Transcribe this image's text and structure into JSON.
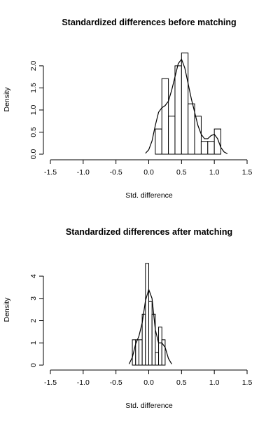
{
  "chart_data": [
    {
      "type": "histogram",
      "title": "Standardized differences before matching",
      "xlabel": "Std. difference",
      "ylabel": "Density",
      "xlim": [
        -1.5,
        1.5
      ],
      "ylim": [
        0,
        2.3
      ],
      "x_ticks": [
        -1.5,
        -1.0,
        -0.5,
        0.0,
        0.5,
        1.0,
        1.5
      ],
      "x_tick_labels": [
        "-1.5",
        "-1.0",
        "-0.5",
        "0.0",
        "0.5",
        "1.0",
        "1.5"
      ],
      "y_ticks": [
        0,
        0.5,
        1.0,
        1.5,
        2.0
      ],
      "y_tick_labels": [
        "0.0",
        "0.5",
        "1.0",
        "1.5",
        "2.0"
      ],
      "bin_width": 0.1,
      "bins": [
        {
          "start": 0.1,
          "end": 0.2,
          "density": 0.57
        },
        {
          "start": 0.2,
          "end": 0.3,
          "density": 1.71
        },
        {
          "start": 0.3,
          "end": 0.4,
          "density": 0.86
        },
        {
          "start": 0.4,
          "end": 0.5,
          "density": 2.0
        },
        {
          "start": 0.5,
          "end": 0.6,
          "density": 2.29
        },
        {
          "start": 0.6,
          "end": 0.7,
          "density": 1.14
        },
        {
          "start": 0.7,
          "end": 0.8,
          "density": 0.86
        },
        {
          "start": 0.8,
          "end": 0.9,
          "density": 0.29
        },
        {
          "start": 0.9,
          "end": 1.0,
          "density": 0.29
        },
        {
          "start": 1.0,
          "end": 1.1,
          "density": 0.57
        }
      ],
      "density_curve": {
        "x": [
          -0.05,
          0.0,
          0.05,
          0.1,
          0.15,
          0.2,
          0.25,
          0.3,
          0.35,
          0.4,
          0.45,
          0.5,
          0.55,
          0.6,
          0.65,
          0.7,
          0.75,
          0.8,
          0.85,
          0.9,
          0.95,
          1.0,
          1.05,
          1.1,
          1.15,
          1.2
        ],
        "y": [
          0.02,
          0.1,
          0.3,
          0.65,
          0.95,
          1.05,
          1.1,
          1.2,
          1.45,
          1.75,
          2.05,
          2.15,
          1.95,
          1.6,
          1.25,
          0.95,
          0.65,
          0.45,
          0.35,
          0.35,
          0.42,
          0.45,
          0.35,
          0.15,
          0.05,
          0.01
        ]
      }
    },
    {
      "type": "histogram",
      "title": "Standardized differences after matching",
      "xlabel": "Std. difference",
      "ylabel": "Density",
      "xlim": [
        -1.5,
        1.5
      ],
      "ylim": [
        0,
        4.6
      ],
      "x_ticks": [
        -1.5,
        -1.0,
        -0.5,
        0.0,
        0.5,
        1.0,
        1.5
      ],
      "x_tick_labels": [
        "-1.5",
        "-1.0",
        "-0.5",
        "0.0",
        "0.5",
        "1.0",
        "1.5"
      ],
      "y_ticks": [
        0,
        1,
        2,
        3,
        4
      ],
      "y_tick_labels": [
        "0",
        "1",
        "2",
        "3",
        "4"
      ],
      "bin_width": 0.05,
      "bins": [
        {
          "start": -0.25,
          "end": -0.2,
          "density": 1.14
        },
        {
          "start": -0.2,
          "end": -0.15,
          "density": 1.14
        },
        {
          "start": -0.15,
          "end": -0.1,
          "density": 1.14
        },
        {
          "start": -0.1,
          "end": -0.05,
          "density": 2.29
        },
        {
          "start": -0.05,
          "end": 0.0,
          "density": 4.57
        },
        {
          "start": 0.0,
          "end": 0.05,
          "density": 2.86
        },
        {
          "start": 0.05,
          "end": 0.1,
          "density": 2.29
        },
        {
          "start": 0.1,
          "end": 0.15,
          "density": 0.57
        },
        {
          "start": 0.15,
          "end": 0.2,
          "density": 1.71
        },
        {
          "start": 0.2,
          "end": 0.25,
          "density": 1.14
        }
      ],
      "density_curve": {
        "x": [
          -0.3,
          -0.25,
          -0.2,
          -0.15,
          -0.1,
          -0.05,
          0.0,
          0.05,
          0.1,
          0.15,
          0.2,
          0.25,
          0.3,
          0.35
        ],
        "y": [
          0.05,
          0.35,
          0.95,
          1.3,
          1.9,
          2.9,
          3.4,
          3.0,
          1.6,
          1.0,
          1.0,
          0.8,
          0.3,
          0.05
        ]
      }
    }
  ]
}
